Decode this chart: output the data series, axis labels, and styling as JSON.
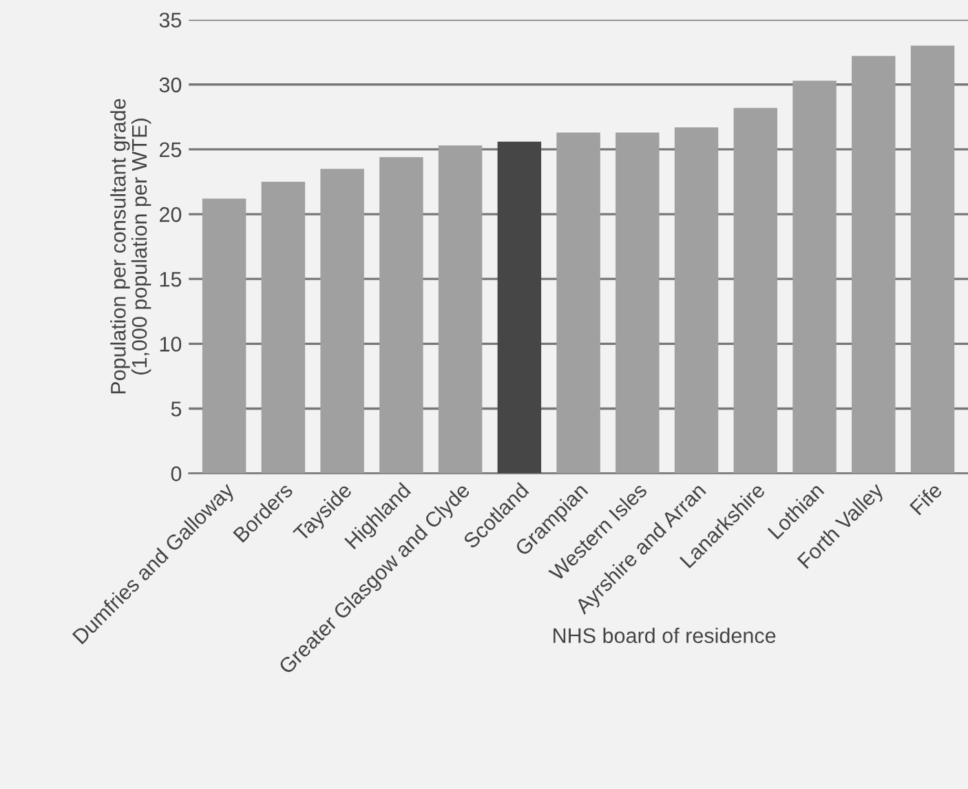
{
  "chart_data": {
    "type": "bar",
    "xlabel": "NHS board of residence",
    "ylabel": "Population per consultant grade\n(1,000 population per WTE)",
    "categories": [
      "Dumfries and Galloway",
      "Borders",
      "Tayside",
      "Highland",
      "Greater Glasgow and Clyde",
      "Scotland",
      "Grampian",
      "Western Isles",
      "Ayrshire and Arran",
      "Lanarkshire",
      "Lothian",
      "Forth Valley",
      "Fife"
    ],
    "values": [
      21.2,
      22.5,
      23.5,
      24.4,
      25.3,
      25.6,
      26.3,
      26.3,
      26.7,
      28.2,
      30.3,
      32.2,
      33.0
    ],
    "colors": [
      "#a0a0a0",
      "#a0a0a0",
      "#a0a0a0",
      "#a0a0a0",
      "#a0a0a0",
      "#464646",
      "#a0a0a0",
      "#a0a0a0",
      "#a0a0a0",
      "#a0a0a0",
      "#a0a0a0",
      "#a0a0a0",
      "#a0a0a0"
    ],
    "ylim": [
      0,
      35
    ],
    "yticks": [
      0,
      5,
      10,
      15,
      20,
      25,
      30,
      35
    ],
    "grid": "y"
  }
}
